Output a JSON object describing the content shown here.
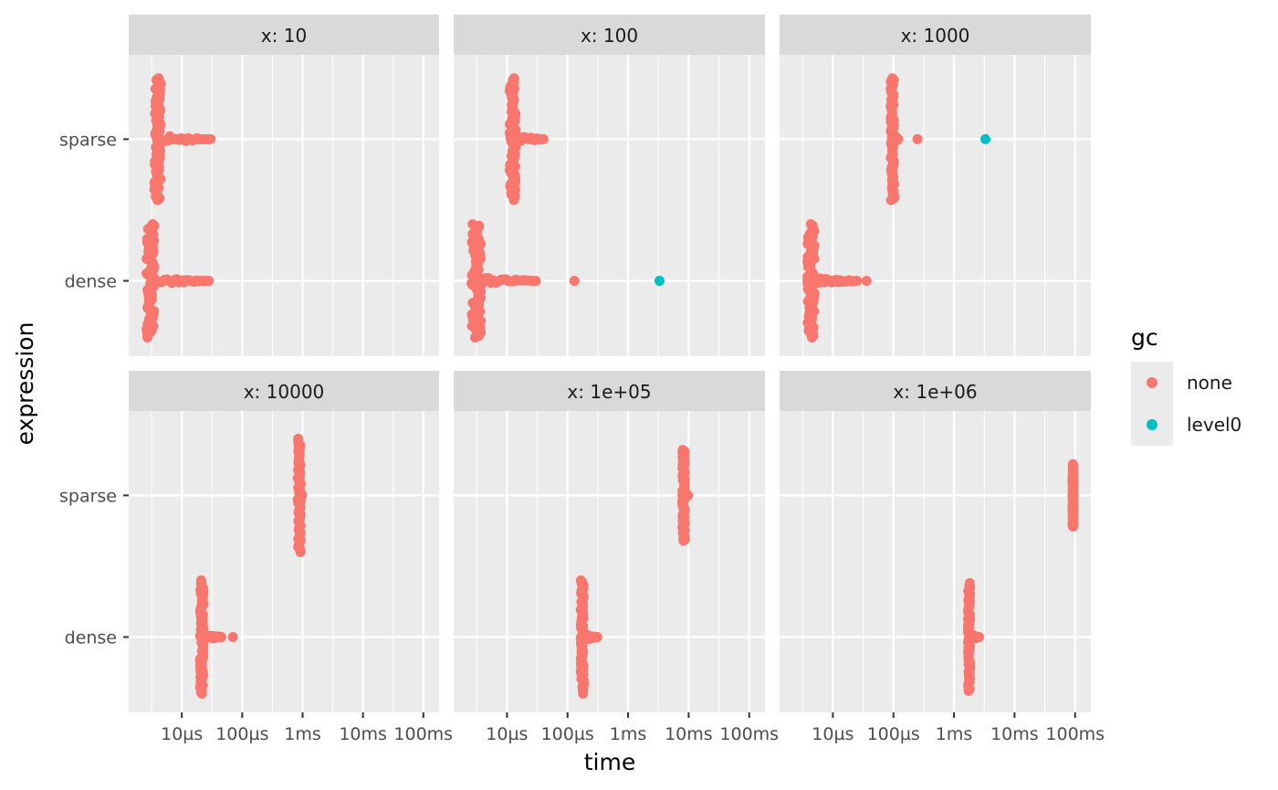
{
  "chart_data": {
    "type": "scatter",
    "facet_variable": "x",
    "xlabel": "time",
    "ylabel": "expression",
    "x_scale": "log10",
    "xlim_seconds": [
      2e-06,
      0.12
    ],
    "x_ticks": [
      {
        "value": 1e-05,
        "label": "10µs"
      },
      {
        "value": 0.0001,
        "label": "100µs"
      },
      {
        "value": 0.001,
        "label": "1ms"
      },
      {
        "value": 0.01,
        "label": "10ms"
      },
      {
        "value": 0.1,
        "label": "100ms"
      }
    ],
    "y_categories": [
      "dense",
      "sparse"
    ],
    "legend": {
      "title": "gc",
      "position": "right",
      "items": [
        {
          "label": "none",
          "color": "#F8766D"
        },
        {
          "label": "level0",
          "color": "#00BFC4"
        }
      ]
    },
    "panels": [
      {
        "strip": "x: 10",
        "series": [
          {
            "expression": "sparse",
            "gc": "none",
            "bulk_min": 3.5e-06,
            "bulk_max": 4.5e-06,
            "spread": 0.43,
            "tail_to": 3e-05,
            "extra": []
          },
          {
            "expression": "dense",
            "gc": "none",
            "bulk_min": 2.6e-06,
            "bulk_max": 3.5e-06,
            "spread": 0.4,
            "tail_to": 2.8e-05,
            "extra": []
          }
        ]
      },
      {
        "strip": "x: 100",
        "series": [
          {
            "expression": "sparse",
            "gc": "none",
            "bulk_min": 1.1e-05,
            "bulk_max": 1.4e-05,
            "spread": 0.43,
            "tail_to": 4e-05,
            "extra": []
          },
          {
            "expression": "dense",
            "gc": "none",
            "bulk_min": 2.6e-06,
            "bulk_max": 3.7e-06,
            "spread": 0.4,
            "tail_to": 3e-05,
            "extra": [
              {
                "time": 0.00013,
                "gc": "none"
              },
              {
                "time": 0.0033,
                "gc": "level0"
              }
            ]
          }
        ]
      },
      {
        "strip": "x: 1000",
        "series": [
          {
            "expression": "sparse",
            "gc": "none",
            "bulk_min": 9e-05,
            "bulk_max": 0.000103,
            "spread": 0.43,
            "tail_to": 0.00012,
            "extra": [
              {
                "time": 0.00025,
                "gc": "none"
              },
              {
                "time": 0.0033,
                "gc": "level0"
              }
            ]
          },
          {
            "expression": "dense",
            "gc": "none",
            "bulk_min": 3.8e-06,
            "bulk_max": 5e-06,
            "spread": 0.4,
            "tail_to": 2.5e-05,
            "extra": [
              {
                "time": 3.6e-05,
                "gc": "none"
              }
            ]
          }
        ]
      },
      {
        "strip": "x: 10000",
        "series": [
          {
            "expression": "sparse",
            "gc": "none",
            "bulk_min": 0.00083,
            "bulk_max": 0.00093,
            "spread": 0.4,
            "tail_to": 0.00098,
            "extra": []
          },
          {
            "expression": "dense",
            "gc": "none",
            "bulk_min": 2e-05,
            "bulk_max": 2.3e-05,
            "spread": 0.4,
            "tail_to": 4.5e-05,
            "extra": [
              {
                "time": 7e-05,
                "gc": "none"
              }
            ]
          }
        ]
      },
      {
        "strip": "x: 1e+05",
        "series": [
          {
            "expression": "sparse",
            "gc": "none",
            "bulk_min": 0.0079,
            "bulk_max": 0.0087,
            "spread": 0.32,
            "tail_to": 0.0097,
            "extra": []
          },
          {
            "expression": "dense",
            "gc": "none",
            "bulk_min": 0.000165,
            "bulk_max": 0.000185,
            "spread": 0.4,
            "tail_to": 0.00031,
            "extra": []
          }
        ]
      },
      {
        "strip": "x: 1e+06",
        "series": [
          {
            "expression": "sparse",
            "gc": "none",
            "bulk_min": 0.092,
            "bulk_max": 0.092,
            "spread": 0.22,
            "tail_to": 0.092,
            "extra": []
          },
          {
            "expression": "dense",
            "gc": "none",
            "bulk_min": 0.0017,
            "bulk_max": 0.00185,
            "spread": 0.38,
            "tail_to": 0.0026,
            "extra": []
          }
        ]
      }
    ]
  }
}
